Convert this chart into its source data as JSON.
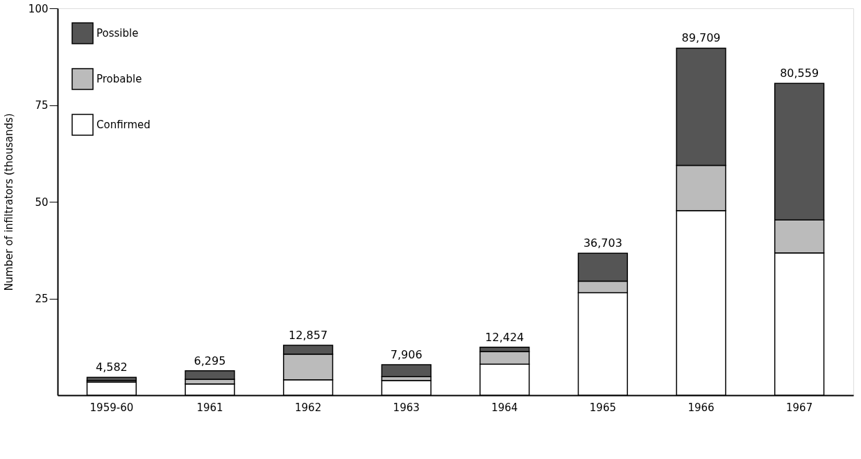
{
  "chart_data": {
    "type": "bar",
    "stacked": true,
    "ylabel": "Number of infiltrators (thousands)",
    "categories": [
      "1959-60",
      "1961",
      "1962",
      "1963",
      "1964",
      "1965",
      "1966",
      "1967"
    ],
    "series": [
      {
        "name": "Confirmed",
        "color": "#ffffff",
        "values": [
          3.4,
          2.9,
          4.0,
          3.8,
          8.0,
          26.5,
          47.7,
          36.8
        ]
      },
      {
        "name": "Probable",
        "color": "#bbbbbb",
        "values": [
          0.4,
          1.2,
          6.6,
          1.0,
          3.3,
          3.0,
          11.7,
          8.5
        ]
      },
      {
        "name": "Possible",
        "color": "#555555",
        "values": [
          0.8,
          2.2,
          2.3,
          3.1,
          1.1,
          7.2,
          30.3,
          35.3
        ]
      }
    ],
    "annotations": [
      {
        "text": "4,582",
        "x": "1959-60",
        "y": 4.6
      },
      {
        "text": "6,295",
        "x": "1961",
        "y": 6.3
      },
      {
        "text": "12,857",
        "x": "1962",
        "y": 12.9
      },
      {
        "text": "7,906",
        "x": "1963",
        "y": 7.9
      },
      {
        "text": "12,424",
        "x": "1964",
        "y": 12.4
      },
      {
        "text": "36,703",
        "x": "1965",
        "y": 36.7
      },
      {
        "text": "89,709",
        "x": "1966",
        "y": 89.7
      },
      {
        "text": "80,559",
        "x": "1967",
        "y": 80.6
      }
    ],
    "ylim": [
      0,
      100
    ],
    "yticks": [
      25,
      50,
      75,
      100
    ],
    "grid": false,
    "legend": "top left"
  }
}
